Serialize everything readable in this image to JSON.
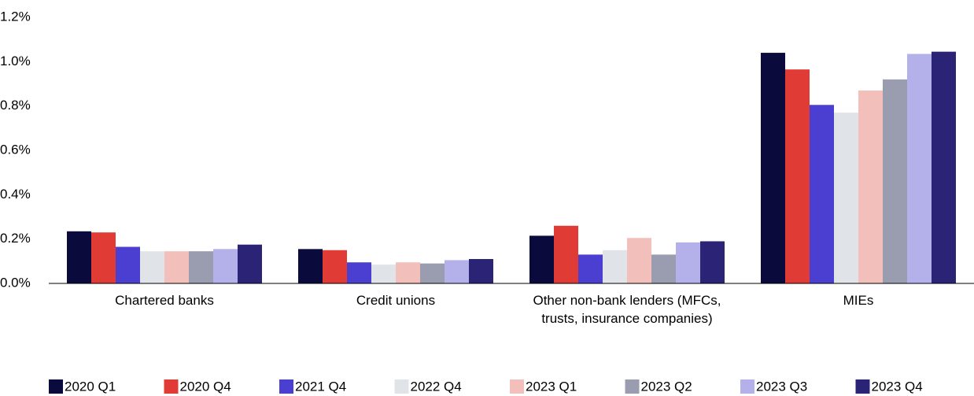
{
  "chart_data": {
    "type": "bar",
    "categories": [
      "Chartered banks",
      "Credit unions",
      "Other non-bank lenders (MFCs, trusts, insurance companies)",
      "MIEs"
    ],
    "series": [
      {
        "name": "2020 Q1",
        "color": "#0a0a3c",
        "values": [
          0.235,
          0.155,
          0.215,
          1.04
        ]
      },
      {
        "name": "2020 Q4",
        "color": "#e03c35",
        "values": [
          0.23,
          0.15,
          0.26,
          0.965
        ]
      },
      {
        "name": "2021 Q4",
        "color": "#4a3fd0",
        "values": [
          0.165,
          0.095,
          0.13,
          0.805
        ]
      },
      {
        "name": "2022 Q4",
        "color": "#e0e4e8",
        "values": [
          0.145,
          0.085,
          0.15,
          0.77
        ]
      },
      {
        "name": "2023 Q1",
        "color": "#f2bfbb",
        "values": [
          0.145,
          0.095,
          0.205,
          0.87
        ]
      },
      {
        "name": "2023 Q2",
        "color": "#9a9db0",
        "values": [
          0.145,
          0.09,
          0.13,
          0.92
        ]
      },
      {
        "name": "2023 Q3",
        "color": "#b3b0ea",
        "values": [
          0.155,
          0.105,
          0.185,
          1.035
        ]
      },
      {
        "name": "2023 Q4",
        "color": "#2b2476",
        "values": [
          0.175,
          0.11,
          0.19,
          1.045
        ]
      }
    ],
    "ylim": [
      0,
      1.2
    ],
    "yticks": [
      {
        "value": 0,
        "label": "0.0%"
      },
      {
        "value": 0.2,
        "label": "0.2%"
      },
      {
        "value": 0.4,
        "label": "0.4%"
      },
      {
        "value": 0.6,
        "label": "0.6%"
      },
      {
        "value": 0.8,
        "label": "0.8%"
      },
      {
        "value": 1.0,
        "label": "1.0%"
      },
      {
        "value": 1.2,
        "label": "1.2%"
      }
    ],
    "grid": false
  }
}
